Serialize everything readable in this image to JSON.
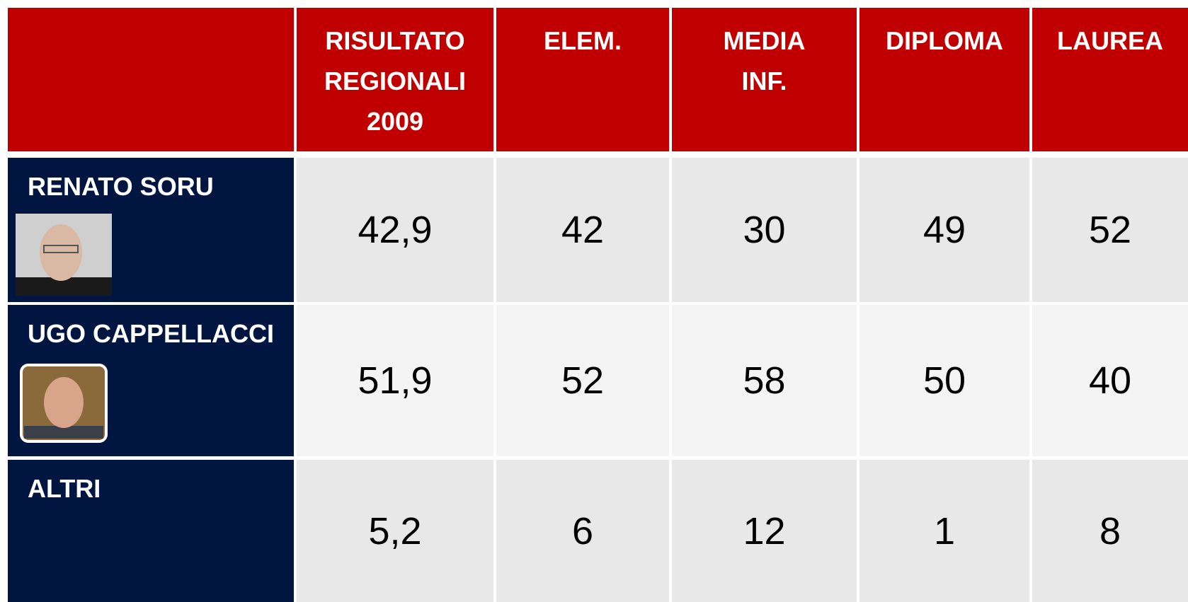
{
  "table": {
    "columns": [
      "RISULTATO\nREGIONALI\n2009",
      "ELEM.",
      "MEDIA\nINF.",
      "DIPLOMA",
      "LAUREA"
    ],
    "rows": [
      {
        "name": "RENATO SORU",
        "values": [
          "42,9",
          42,
          30,
          49,
          52
        ]
      },
      {
        "name": "UGO CAPPELLACCI",
        "values": [
          "51,9",
          52,
          58,
          50,
          40
        ]
      },
      {
        "name": "ALTRI",
        "values": [
          "5,2",
          6,
          12,
          1,
          8
        ]
      }
    ]
  }
}
